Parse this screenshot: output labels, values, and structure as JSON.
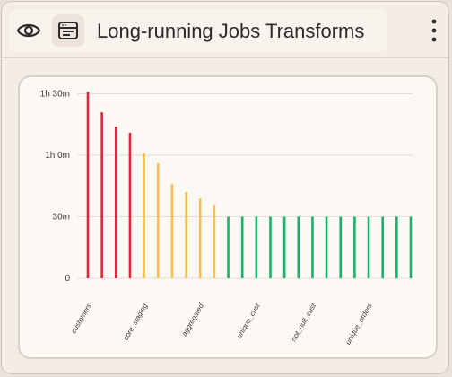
{
  "header": {
    "title": "Long-running Jobs Transforms",
    "icons": [
      "eye-icon",
      "template-icon",
      "kebab-menu-icon"
    ]
  },
  "chart_data": {
    "type": "bar",
    "title": "",
    "xlabel": "",
    "ylabel": "",
    "ylim": [
      0,
      92
    ],
    "y_ticks": [
      0,
      30,
      60,
      90
    ],
    "y_tick_labels": [
      "0",
      "30m",
      "1h 0m",
      "1h 30m"
    ],
    "grid": true,
    "values": [
      91,
      81,
      74,
      71,
      61,
      56,
      46,
      42,
      39,
      36,
      30,
      30,
      30,
      30,
      30,
      30,
      30,
      30,
      30,
      30,
      30,
      30,
      30,
      30
    ],
    "bar_colors": [
      "#e0263f",
      "#e0263f",
      "#e0263f",
      "#e0263f",
      "#fcbf4a",
      "#fcbf4a",
      "#fcbf4a",
      "#fcbf4a",
      "#fcbf4a",
      "#fcbf4a",
      "#19b06a",
      "#19b06a",
      "#19b06a",
      "#19b06a",
      "#19b06a",
      "#19b06a",
      "#19b06a",
      "#19b06a",
      "#19b06a",
      "#19b06a",
      "#19b06a",
      "#19b06a",
      "#19b06a",
      "#19b06a"
    ],
    "x_tick_labels": [
      {
        "index": 0,
        "label": "customers"
      },
      {
        "index": 4,
        "label": "core_staging"
      },
      {
        "index": 8,
        "label": "aggregated"
      },
      {
        "index": 12,
        "label": "unique_cust"
      },
      {
        "index": 16,
        "label": "not_null_cust"
      },
      {
        "index": 20,
        "label": "unique_orders"
      }
    ]
  }
}
